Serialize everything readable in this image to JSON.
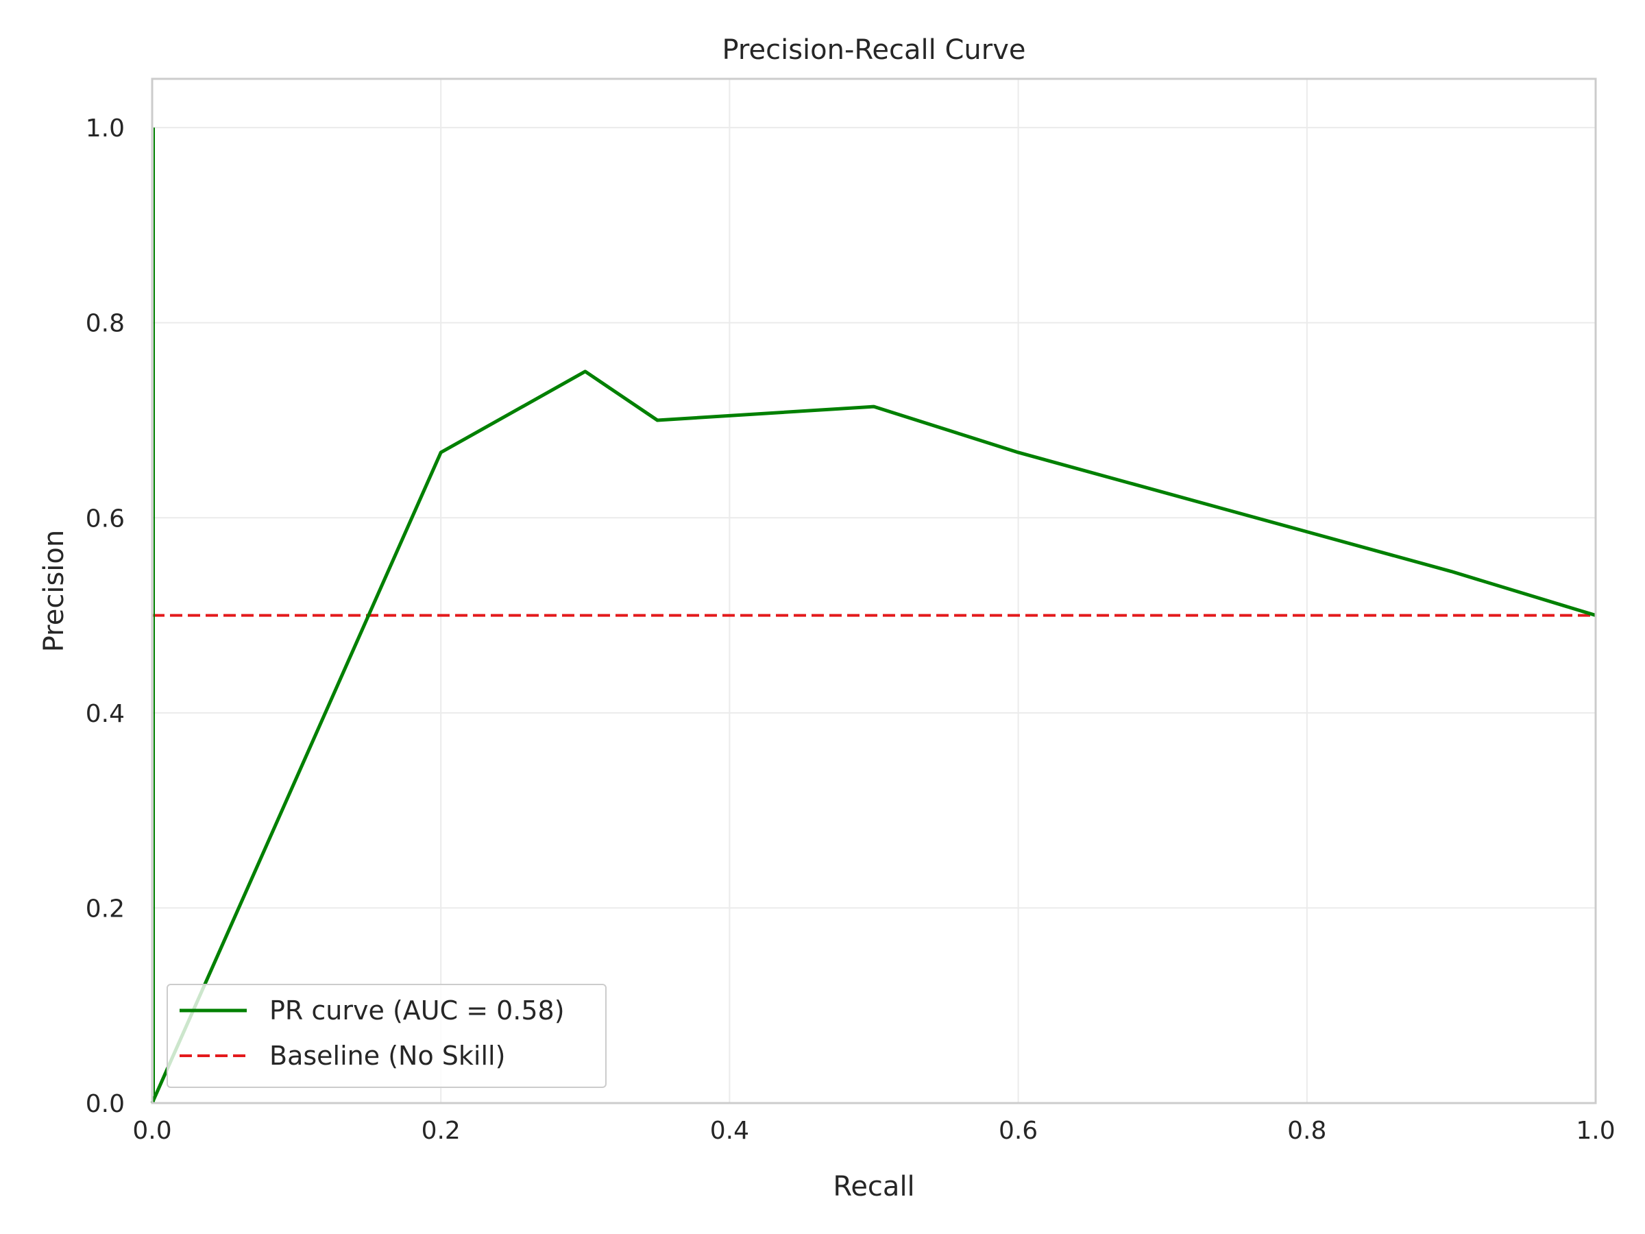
{
  "chart_data": {
    "type": "line",
    "title": "Precision-Recall Curve",
    "xlabel": "Recall",
    "ylabel": "Precision",
    "xlim": [
      0.0,
      1.0
    ],
    "ylim": [
      0.0,
      1.05
    ],
    "xticks": [
      "0.0",
      "0.2",
      "0.4",
      "0.6",
      "0.8",
      "1.0"
    ],
    "yticks": [
      "0.0",
      "0.2",
      "0.4",
      "0.6",
      "0.8",
      "1.0"
    ],
    "grid": true,
    "legend_position": "lower-left",
    "series": [
      {
        "name": "PR curve (AUC = 0.58)",
        "color": "#008000",
        "style": "solid",
        "x": [
          0.0,
          0.0,
          0.0,
          0.2,
          0.3,
          0.35,
          0.5,
          0.6,
          0.9,
          1.0
        ],
        "y": [
          1.0,
          0.0,
          0.0,
          0.667,
          0.75,
          0.7,
          0.714,
          0.667,
          0.545,
          0.5
        ]
      },
      {
        "name": "Baseline (No Skill)",
        "color": "#e31a1c",
        "style": "dashed",
        "x": [
          0.0,
          1.0
        ],
        "y": [
          0.5,
          0.5
        ]
      }
    ]
  }
}
